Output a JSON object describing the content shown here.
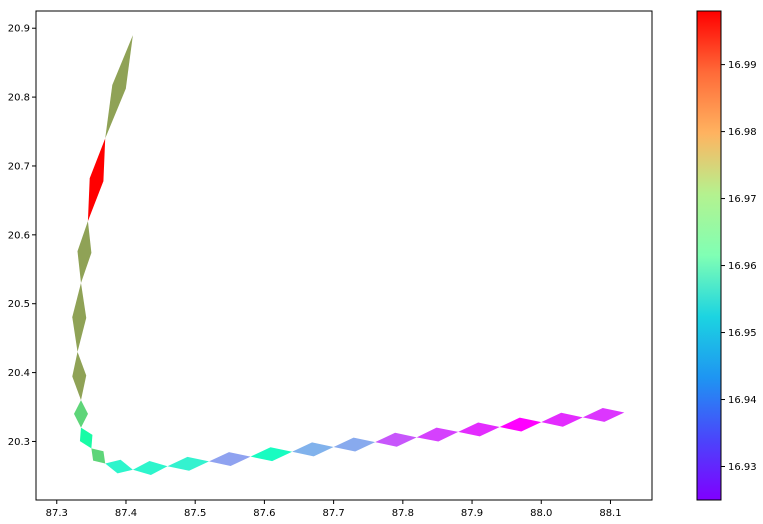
{
  "chart_data": {
    "type": "scatter",
    "title": "",
    "xlabel": "",
    "ylabel": "",
    "xlim": [
      87.27,
      88.16
    ],
    "ylim": [
      20.215,
      20.925
    ],
    "x_ticks": [
      "87.3",
      "87.4",
      "87.5",
      "87.6",
      "87.7",
      "87.8",
      "87.9",
      "88.0",
      "88.1"
    ],
    "x_tick_values": [
      87.3,
      87.4,
      87.5,
      87.6,
      87.7,
      87.8,
      87.9,
      88.0,
      88.1
    ],
    "y_ticks": [
      "20.3",
      "20.4",
      "20.5",
      "20.6",
      "20.7",
      "20.8",
      "20.9"
    ],
    "y_tick_values": [
      20.3,
      20.4,
      20.5,
      20.6,
      20.7,
      20.8,
      20.9
    ],
    "colorbar": {
      "range": [
        16.925,
        16.998
      ],
      "ticks": [
        "16.93",
        "16.94",
        "16.95",
        "16.96",
        "16.97",
        "16.98",
        "16.99"
      ],
      "tick_values": [
        16.93,
        16.94,
        16.95,
        16.96,
        16.97,
        16.98,
        16.99
      ],
      "colormap": "rainbow"
    },
    "segments": [
      {
        "x1": 88.12,
        "y1": 20.342,
        "x2": 88.06,
        "y2": 20.335,
        "value": 16.93
      },
      {
        "x1": 88.06,
        "y1": 20.335,
        "x2": 88.0,
        "y2": 20.328,
        "value": 16.929
      },
      {
        "x1": 88.0,
        "y1": 20.328,
        "x2": 87.94,
        "y2": 20.321,
        "value": 16.925
      },
      {
        "x1": 87.94,
        "y1": 20.321,
        "x2": 87.88,
        "y2": 20.314,
        "value": 16.929
      },
      {
        "x1": 87.88,
        "y1": 20.314,
        "x2": 87.82,
        "y2": 20.306,
        "value": 16.931
      },
      {
        "x1": 87.82,
        "y1": 20.306,
        "x2": 87.76,
        "y2": 20.299,
        "value": 16.933
      },
      {
        "x1": 87.76,
        "y1": 20.299,
        "x2": 87.7,
        "y2": 20.292,
        "value": 16.942
      },
      {
        "x1": 87.7,
        "y1": 20.292,
        "x2": 87.64,
        "y2": 20.285,
        "value": 16.943
      },
      {
        "x1": 87.64,
        "y1": 20.285,
        "x2": 87.58,
        "y2": 20.278,
        "value": 16.958
      },
      {
        "x1": 87.58,
        "y1": 20.278,
        "x2": 87.52,
        "y2": 20.271,
        "value": 16.941
      },
      {
        "x1": 87.52,
        "y1": 20.271,
        "x2": 87.46,
        "y2": 20.264,
        "value": 16.954
      },
      {
        "x1": 87.46,
        "y1": 20.264,
        "x2": 87.41,
        "y2": 20.259,
        "value": 16.955
      },
      {
        "x1": 87.41,
        "y1": 20.259,
        "x2": 87.37,
        "y2": 20.268,
        "value": 16.955
      },
      {
        "x1": 87.37,
        "y1": 20.268,
        "x2": 87.35,
        "y2": 20.29,
        "value": 16.975
      },
      {
        "x1": 87.35,
        "y1": 20.29,
        "x2": 87.335,
        "y2": 20.32,
        "value": 16.965
      },
      {
        "x1": 87.335,
        "y1": 20.32,
        "x2": 87.335,
        "y2": 20.36,
        "value": 16.975
      },
      {
        "x1": 87.335,
        "y1": 20.36,
        "x2": 87.33,
        "y2": 20.43,
        "value": 16.982
      },
      {
        "x1": 87.33,
        "y1": 20.43,
        "x2": 87.335,
        "y2": 20.53,
        "value": 16.982
      },
      {
        "x1": 87.335,
        "y1": 20.53,
        "x2": 87.345,
        "y2": 20.62,
        "value": 16.982
      },
      {
        "x1": 87.345,
        "y1": 20.62,
        "x2": 87.37,
        "y2": 20.74,
        "value": 16.998
      },
      {
        "x1": 87.37,
        "y1": 20.74,
        "x2": 87.41,
        "y2": 20.89,
        "value": 16.982
      }
    ]
  }
}
